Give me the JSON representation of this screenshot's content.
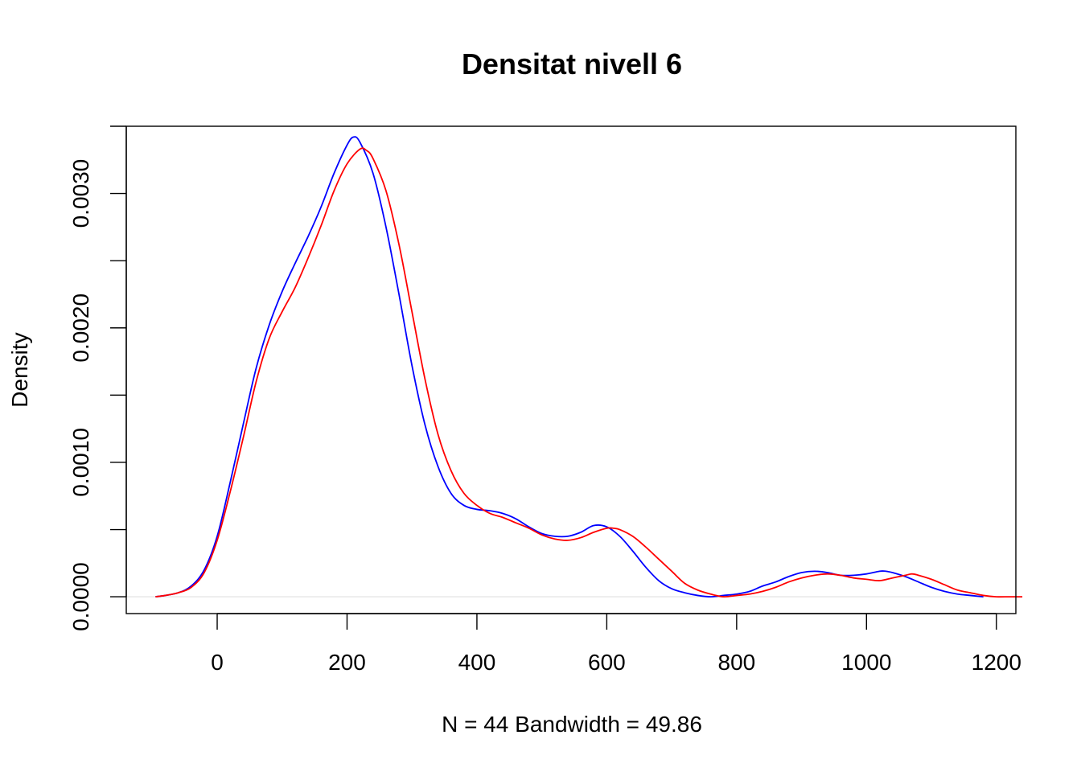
{
  "chart_data": {
    "type": "line",
    "title": "Densitat nivell 6",
    "xlabel": "N = 44   Bandwidth = 49.86",
    "ylabel": "Density",
    "xlim": [
      -140,
      1230
    ],
    "ylim": [
      -0.000125,
      0.0035
    ],
    "x_ticks": [
      0,
      200,
      400,
      600,
      800,
      1000,
      1200
    ],
    "x_tick_labels": [
      "0",
      "200",
      "400",
      "600",
      "800",
      "1000",
      "1200"
    ],
    "y_ticks": [
      0,
      0.0005,
      0.001,
      0.0015,
      0.002,
      0.0025,
      0.003,
      0.0035
    ],
    "y_tick_labels": [
      "0.0000",
      "",
      "0.0010",
      "",
      "0.0020",
      "",
      "0.0030",
      ""
    ],
    "grid": false,
    "series": [
      {
        "color": "#0000ff",
        "x": [
          -95,
          -80,
          -60,
          -40,
          -20,
          0,
          20,
          40,
          60,
          80,
          100,
          120,
          140,
          160,
          180,
          200,
          210,
          220,
          240,
          260,
          280,
          300,
          320,
          340,
          360,
          380,
          400,
          420,
          440,
          460,
          480,
          500,
          520,
          540,
          560,
          580,
          600,
          620,
          640,
          660,
          680,
          700,
          720,
          740,
          760,
          780,
          800,
          820,
          840,
          860,
          880,
          900,
          920,
          940,
          960,
          980,
          1000,
          1020,
          1030,
          1040,
          1060,
          1080,
          1100,
          1120,
          1140,
          1160,
          1180
        ],
        "y": [
          0.0,
          1e-05,
          3e-05,
          8e-05,
          0.0002,
          0.00045,
          0.00085,
          0.00128,
          0.0017,
          0.00202,
          0.00227,
          0.00248,
          0.00268,
          0.0029,
          0.00315,
          0.00336,
          0.00342,
          0.00338,
          0.00315,
          0.00275,
          0.00225,
          0.00172,
          0.00128,
          0.00097,
          0.00077,
          0.00068,
          0.00065,
          0.00064,
          0.00062,
          0.00058,
          0.00052,
          0.00047,
          0.00045,
          0.00045,
          0.00048,
          0.00053,
          0.00052,
          0.00045,
          0.00034,
          0.00022,
          0.00012,
          6e-05,
          3e-05,
          1e-05,
          0.0,
          1e-05,
          2e-05,
          4e-05,
          8e-05,
          0.00011,
          0.00015,
          0.00018,
          0.00019,
          0.00018,
          0.00016,
          0.00016,
          0.00017,
          0.00019,
          0.00019,
          0.00018,
          0.00015,
          0.00011,
          7e-05,
          4e-05,
          2e-05,
          1e-05,
          0.0
        ]
      },
      {
        "color": "#ff0000",
        "x": [
          -95,
          -80,
          -60,
          -40,
          -20,
          0,
          20,
          40,
          60,
          80,
          100,
          120,
          140,
          160,
          180,
          200,
          220,
          230,
          240,
          260,
          280,
          300,
          320,
          340,
          360,
          380,
          400,
          420,
          440,
          460,
          480,
          500,
          520,
          540,
          560,
          580,
          600,
          610,
          620,
          640,
          660,
          680,
          700,
          720,
          740,
          760,
          780,
          800,
          820,
          840,
          860,
          880,
          900,
          920,
          940,
          960,
          980,
          1000,
          1020,
          1040,
          1060,
          1070,
          1080,
          1100,
          1120,
          1140,
          1160,
          1180,
          1200,
          1220,
          1240
        ],
        "y": [
          0.0,
          1e-05,
          3e-05,
          7e-05,
          0.00018,
          0.00042,
          0.00078,
          0.00118,
          0.0016,
          0.00192,
          0.00212,
          0.0023,
          0.00252,
          0.00276,
          0.00302,
          0.00322,
          0.00333,
          0.00332,
          0.00326,
          0.00302,
          0.00262,
          0.00212,
          0.00162,
          0.00121,
          0.00094,
          0.00077,
          0.00068,
          0.00062,
          0.00059,
          0.00055,
          0.00051,
          0.00046,
          0.00043,
          0.00042,
          0.00044,
          0.00048,
          0.00051,
          0.00051,
          0.0005,
          0.00045,
          0.00037,
          0.00028,
          0.00019,
          0.0001,
          5e-05,
          2e-05,
          0.0,
          1e-05,
          2e-05,
          4e-05,
          7e-05,
          0.00011,
          0.00014,
          0.00016,
          0.00017,
          0.00016,
          0.00014,
          0.00013,
          0.00012,
          0.00014,
          0.00016,
          0.00017,
          0.00016,
          0.00013,
          9e-05,
          5e-05,
          3e-05,
          1e-05,
          0.0,
          0.0,
          0.0
        ]
      }
    ]
  }
}
